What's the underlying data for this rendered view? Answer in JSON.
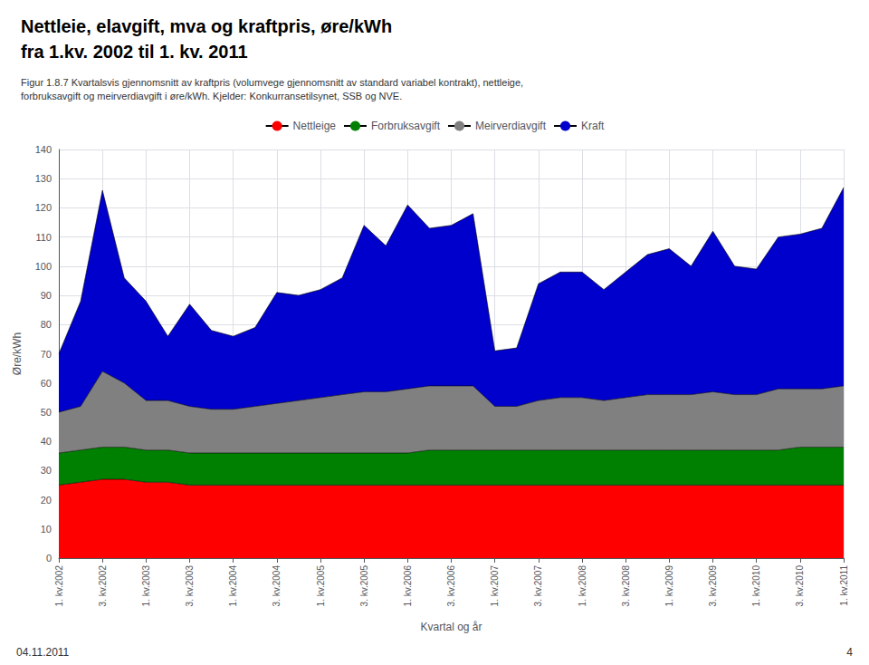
{
  "chart_data": {
    "type": "area",
    "stacked": true,
    "title": "Nettleie, elavgift, mva og kraftpris, øre/kWh\nfra 1.kv. 2002 til 1. kv. 2011",
    "subtitle": "Figur 1.8.7 Kvartalsvis gjennomsnitt av kraftpris (volumvege gjennomsnitt av standard variabel kontrakt), nettleige,\nforbruksavgift og meirverdiavgift i øre/kWh. Kjelder: Konkurransetilsynet, SSB og NVE.",
    "xlabel": "Kvartal og år",
    "ylabel": "Øre/kWh",
    "annotations": [
      {
        "text": "04.11.2011"
      },
      {
        "text": "4"
      }
    ],
    "legend": "top",
    "grid": true,
    "categories": [
      "1. kv.2002",
      null,
      "3. kv.2002",
      null,
      "1. kv.2003",
      null,
      "3. kv.2003",
      null,
      "1. kv.2004",
      null,
      "3. kv.2004",
      null,
      "1. kv.2005",
      null,
      "3. kv.2005",
      null,
      "1. kv.2006",
      null,
      "3. kv.2006",
      null,
      "1. kv.2007",
      null,
      "3. kv.2007",
      null,
      "1. kv.2008",
      null,
      "3. kv.2008",
      null,
      "1. kv.2009",
      null,
      "3. kv.2009",
      null,
      "1. kv.2010",
      null,
      "3. kv.2010",
      null,
      "1. kv.2011"
    ],
    "series": [
      {
        "name": "Nettleige",
        "color": "#FF0000",
        "values": [
          25,
          26,
          27,
          27,
          26,
          26,
          25,
          25,
          25,
          25,
          25,
          25,
          25,
          25,
          25,
          25,
          25,
          25,
          25,
          25,
          25,
          25,
          25,
          25,
          25,
          25,
          25,
          25,
          25,
          25,
          25,
          25,
          25,
          25,
          25,
          25,
          25
        ]
      },
      {
        "name": "Forbruksavgift",
        "color": "#008000",
        "values": [
          11,
          11,
          11,
          11,
          11,
          11,
          11,
          11,
          11,
          11,
          11,
          11,
          11,
          11,
          11,
          11,
          11,
          12,
          12,
          12,
          12,
          12,
          12,
          12,
          12,
          12,
          12,
          12,
          12,
          12,
          12,
          12,
          12,
          12,
          13,
          13,
          13
        ]
      },
      {
        "name": "Meirverdiavgift",
        "color": "#808080",
        "values": [
          14,
          15,
          26,
          22,
          17,
          17,
          16,
          15,
          15,
          16,
          17,
          18,
          19,
          20,
          21,
          21,
          22,
          22,
          22,
          22,
          15,
          15,
          17,
          18,
          18,
          17,
          18,
          19,
          19,
          19,
          20,
          19,
          19,
          21,
          20,
          20,
          21
        ]
      },
      {
        "name": "Kraft",
        "color": "#0000CD",
        "values": [
          20,
          36,
          62,
          36,
          34,
          22,
          35,
          27,
          25,
          27,
          38,
          36,
          37,
          40,
          57,
          50,
          63,
          54,
          55,
          59,
          19,
          20,
          40,
          43,
          43,
          38,
          43,
          48,
          50,
          44,
          55,
          44,
          43,
          52,
          53,
          55,
          68
        ]
      }
    ],
    "ylim": [
      0,
      140
    ],
    "yticks": [
      0,
      10,
      20,
      30,
      40,
      50,
      60,
      70,
      80,
      90,
      100,
      110,
      120,
      130,
      140
    ]
  }
}
